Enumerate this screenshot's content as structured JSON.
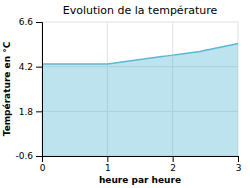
{
  "chart_data": {
    "type": "area",
    "title": "Evolution de la température",
    "xlabel": "heure par heure",
    "ylabel": "Température en °C",
    "x": [
      0.0,
      0.083,
      0.167,
      0.25,
      0.333,
      0.417,
      0.5,
      0.583,
      0.667,
      0.75,
      0.833,
      0.917,
      1.0,
      1.083,
      1.167,
      1.25,
      1.333,
      1.417,
      1.5,
      1.583,
      1.667,
      1.75,
      1.833,
      1.917,
      2.0,
      2.083,
      2.167,
      2.25,
      2.333,
      2.417,
      2.5,
      2.583,
      2.667,
      2.75,
      2.833,
      2.917,
      3.0
    ],
    "values": [
      4.35,
      4.35,
      4.35,
      4.35,
      4.35,
      4.35,
      4.35,
      4.35,
      4.35,
      4.35,
      4.35,
      4.35,
      4.35,
      4.38,
      4.42,
      4.46,
      4.5,
      4.54,
      4.58,
      4.62,
      4.66,
      4.7,
      4.74,
      4.78,
      4.82,
      4.86,
      4.9,
      4.94,
      4.98,
      5.02,
      5.08,
      5.14,
      5.2,
      5.26,
      5.32,
      5.38,
      5.44
    ],
    "color": "#5bb8d4",
    "xlim": [
      0,
      3
    ],
    "ylim": [
      -0.6,
      6.6
    ],
    "xticks": [
      0,
      1,
      2,
      3
    ],
    "yticks": [
      -0.6,
      1.8,
      4.2,
      6.6
    ],
    "grid": true
  }
}
